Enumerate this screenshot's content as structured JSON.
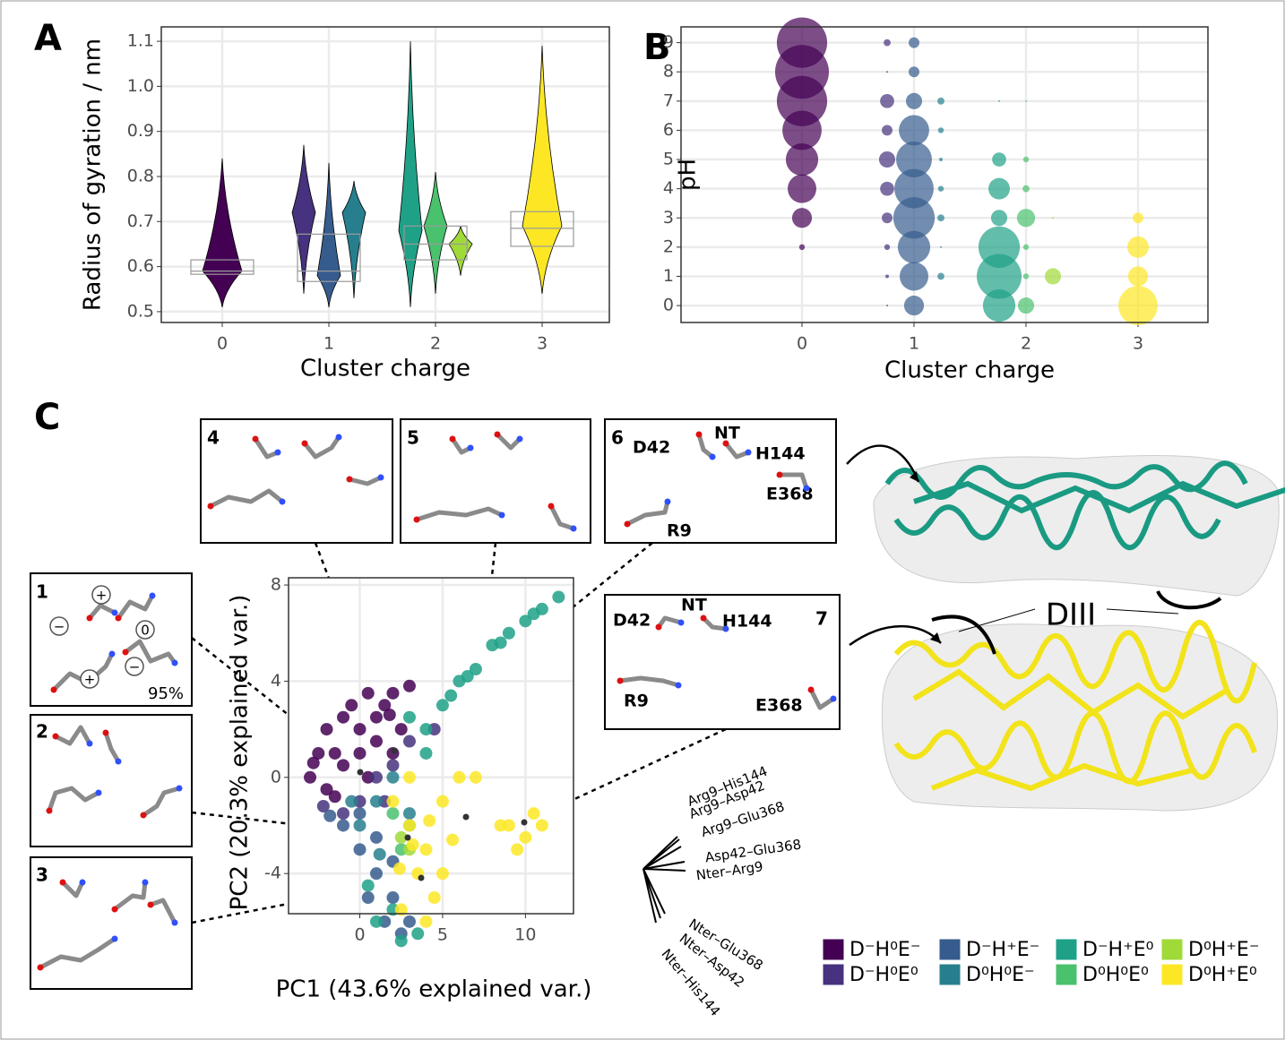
{
  "panel_labels": [
    "A",
    "B",
    "C"
  ],
  "chart_data": [
    {
      "type": "violin",
      "xlabel": "Cluster charge",
      "ylabel": "Radius of gyration / nm",
      "categories": [
        "0",
        "1",
        "2",
        "3"
      ],
      "ylim": [
        0.476,
        1.132
      ],
      "yticks": [
        0.5,
        0.6,
        0.7,
        0.8,
        0.9,
        {
          "value": 1,
          "label": "1.0"
        },
        1.1
      ],
      "grid": true,
      "groups": [
        {
          "box": [
            0.583,
            0.59,
            0.615
          ],
          "violins": [
            {
              "color": "#440154",
              "min": 0.51,
              "mode": 0.59,
              "max": 0.84
            }
          ]
        },
        {
          "box": [
            0.567,
            0.59,
            0.672
          ],
          "violins": [
            {
              "color": "#46327e",
              "min": 0.54,
              "mode": 0.72,
              "max": 0.87
            },
            {
              "color": "#365c8d",
              "min": 0.51,
              "mode": 0.58,
              "max": 0.83
            },
            {
              "color": "#277f8e",
              "min": 0.53,
              "mode": 0.72,
              "max": 0.79
            }
          ]
        },
        {
          "box": [
            0.615,
            0.65,
            0.69
          ],
          "violins": [
            {
              "color": "#1fa187",
              "min": 0.51,
              "mode": 0.68,
              "max": 1.1
            },
            {
              "color": "#4ac16d",
              "min": 0.54,
              "mode": 0.69,
              "max": 0.81
            },
            {
              "color": "#a0da39",
              "min": 0.58,
              "mode": 0.65,
              "max": 0.69
            }
          ]
        },
        {
          "box": [
            0.645,
            0.685,
            0.722
          ],
          "violins": [
            {
              "color": "#fde725",
              "min": 0.54,
              "mode": 0.69,
              "max": 1.09
            }
          ]
        }
      ]
    },
    {
      "type": "bubble",
      "xlabel": "Cluster charge",
      "ylabel": "pH",
      "categories": [
        "0",
        "1",
        "2",
        "3"
      ],
      "ylim": [
        -0.58,
        9.54
      ],
      "yticks": [
        0,
        1,
        2,
        3,
        4,
        5,
        6,
        7,
        8,
        9
      ],
      "grid": true,
      "y": [
        0,
        1,
        2,
        3,
        4,
        5,
        6,
        7,
        8,
        9
      ],
      "groups": [
        {
          "series": [
            {
              "color": "#440154",
              "sizes": [
                null,
                null,
                1,
                12,
                25,
                32,
                47,
                77,
                88,
                77
              ]
            }
          ]
        },
        {
          "series": [
            {
              "color": "#46327e",
              "sizes": [
                0.1,
                0.4,
                1,
                3.5,
                6,
                8,
                3.5,
                6,
                0.1,
                1.5
              ]
            },
            {
              "color": "#365c8d",
              "sizes": [
                12,
                25,
                32,
                52,
                47,
                39,
                28,
                8,
                3.5,
                3.5
              ]
            },
            {
              "color": "#277f8e",
              "sizes": [
                null,
                1.5,
                0.1,
                1.5,
                1,
                0.4,
                1,
                1.5,
                null,
                null
              ]
            }
          ]
        },
        {
          "series": [
            {
              "color": "#1fa187",
              "sizes": [
                32,
                61,
                52,
                8,
                14,
                6,
                null,
                0.1,
                null,
                null
              ]
            },
            {
              "color": "#4ac16d",
              "sizes": [
                8,
                1,
                1,
                10,
                1.5,
                1,
                null,
                0.1,
                null,
                null
              ]
            },
            {
              "color": "#a0da39",
              "sizes": [
                null,
                8,
                null,
                0.1,
                null,
                null,
                null,
                null,
                null,
                null
              ]
            }
          ]
        },
        {
          "series": [
            {
              "color": "#fde725",
              "sizes": [
                47,
                12,
                14,
                3.5,
                null,
                null,
                null,
                null,
                null,
                null
              ]
            }
          ]
        }
      ]
    },
    {
      "type": "scatter",
      "xlabel": "PC1 (43.6% explained var.)",
      "ylabel": "PC2 (20.3% explained var.)",
      "xlim": [
        -4.3,
        12.9
      ],
      "ylim": [
        -5.67,
        8.3
      ],
      "xticks": [
        0,
        5,
        10
      ],
      "yticks": [
        -4,
        0,
        4,
        8
      ],
      "grid": true,
      "series": [
        {
          "name": "D⁻H⁰E⁻",
          "color": "#440154",
          "x": [
            -3,
            -2.5,
            -2,
            -1.5,
            -1,
            -0.5,
            0,
            0.5,
            1,
            1.5,
            2,
            2.5,
            3,
            -2,
            -1,
            0,
            1,
            2,
            0.5,
            -1.5,
            -2.8,
            1.8
          ],
          "y": [
            0,
            1,
            2,
            1,
            2.5,
            3,
            2,
            3.5,
            2.5,
            3,
            3.5,
            2,
            3.8,
            -0.5,
            0.5,
            1,
            1.5,
            1,
            0,
            -0.8,
            0.6,
            2.6
          ]
        },
        {
          "name": "D⁻H⁰E⁰",
          "color": "#46327e",
          "x": [
            0,
            1,
            2,
            -1,
            3,
            4.5,
            1.5,
            -2.2
          ],
          "y": [
            -1,
            0,
            0.5,
            -1.5,
            1.5,
            2,
            -1,
            -1.2
          ]
        },
        {
          "name": "D⁻H⁺E⁻",
          "color": "#365c8d",
          "x": [
            -1,
            0,
            1,
            2,
            1.5,
            2.5,
            0,
            1,
            2,
            3,
            -1.8,
            0.5
          ],
          "y": [
            -2,
            -3,
            -4,
            -5,
            -6,
            -6.5,
            -1.5,
            -2.5,
            -3.5,
            -6,
            -1.6,
            -5
          ]
        },
        {
          "name": "D⁰H⁰E⁻",
          "color": "#277f8e",
          "x": [
            0,
            1,
            2,
            -0.5,
            3,
            1.2
          ],
          "y": [
            -2,
            -1,
            0,
            -1,
            -1.5,
            -3.2
          ]
        },
        {
          "name": "D⁻H⁺E⁰",
          "color": "#1fa187",
          "x": [
            4,
            5,
            6,
            7,
            8,
            9,
            10,
            11,
            12,
            3,
            4,
            2,
            1,
            3.5,
            2.5,
            0.5,
            6.5,
            8.5,
            10.5,
            5.5
          ],
          "y": [
            2,
            3,
            4,
            4.5,
            5.5,
            6,
            6.5,
            7,
            7.5,
            2.5,
            1,
            -5.5,
            -6,
            -6.5,
            -6.8,
            -4.5,
            4.2,
            5.6,
            6.8,
            3.4
          ]
        },
        {
          "name": "D⁰H⁰E⁰",
          "color": "#4ac16d",
          "x": [
            2,
            3,
            2.5
          ],
          "y": [
            -1.5,
            -2,
            -3
          ]
        },
        {
          "name": "D⁰H⁺E⁻",
          "color": "#a0da39",
          "x": [
            3,
            2.5
          ],
          "y": [
            -3,
            -2.5
          ]
        },
        {
          "name": "D⁰H⁺E⁰",
          "color": "#fde725",
          "x": [
            2,
            3,
            4,
            5,
            6,
            4.5,
            3.5,
            2.5,
            3,
            5,
            9,
            10,
            11,
            9.5,
            10.5,
            8.5,
            7,
            4,
            3.2,
            4.2,
            2.4,
            5.6
          ],
          "y": [
            -1,
            -2,
            -3,
            -1,
            0,
            -5,
            -4,
            -5.5,
            0,
            -4,
            -2,
            -2.5,
            -2,
            -3,
            -1.5,
            -2,
            0,
            -6,
            -2.8,
            -1.8,
            -3.8,
            -2.6
          ]
        }
      ],
      "loadings": [
        "Arg9–His144",
        "Arg9–Asp42",
        "Arg9–Glu368",
        "Asp42–Glu368",
        "Nter–Arg9",
        "Nter–Glu368",
        "Nter–Asp42",
        "Nter–His144"
      ]
    }
  ],
  "insets": [
    {
      "number": "1",
      "charges": [
        "+",
        "−",
        "0",
        "−",
        "+"
      ],
      "note": "95%"
    },
    {
      "number": "2"
    },
    {
      "number": "3"
    },
    {
      "number": "4"
    },
    {
      "number": "5"
    },
    {
      "number": "6",
      "labels": [
        "D42",
        "NT",
        "H144",
        "E368",
        "R9"
      ]
    },
    {
      "number": "7",
      "labels": [
        "D42",
        "NT",
        "H144",
        "R9",
        "E368"
      ]
    }
  ],
  "domain_label": "DIII"
}
